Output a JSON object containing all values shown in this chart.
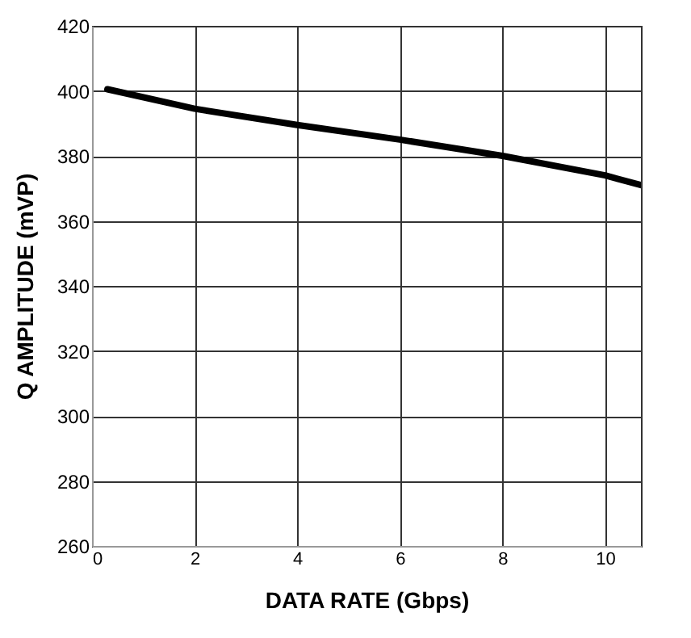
{
  "chart_data": {
    "type": "line",
    "xlabel": "DATA RATE (Gbps)",
    "ylabel": "Q AMPLITUDE (mVP)",
    "x": [
      0.3,
      2,
      4,
      6,
      8,
      10,
      10.7
    ],
    "series": [
      {
        "color": "#000000",
        "values": [
          400.5,
          394.5,
          389.5,
          385,
          380,
          374,
          371
        ]
      }
    ],
    "xlim": [
      0,
      10.7
    ],
    "xticks": [
      0,
      2,
      4,
      6,
      8,
      10
    ],
    "ylim": [
      260,
      420
    ],
    "yticks": [
      260,
      280,
      300,
      320,
      340,
      360,
      380,
      400,
      420
    ],
    "grid": true,
    "marker": "none",
    "line_style": "solid"
  }
}
